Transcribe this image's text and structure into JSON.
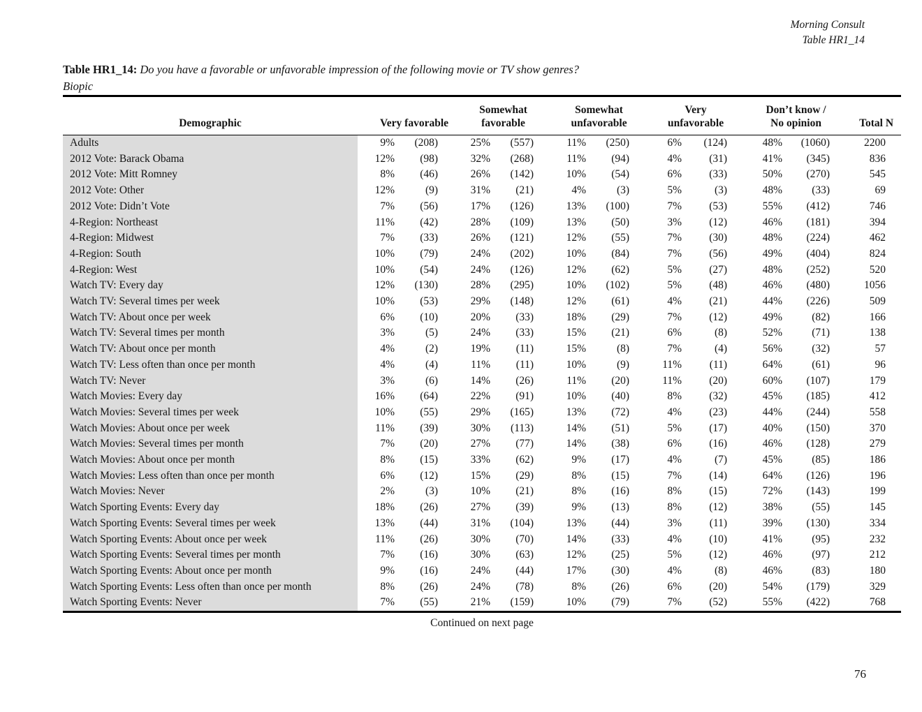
{
  "header": {
    "brand": "Morning Consult",
    "table_ref": "Table HR1_14"
  },
  "title": {
    "label": "Table HR1_14:",
    "question": "Do you have a favorable or unfavorable impression of the following movie or TV show genres?",
    "subtitle": "Biopic"
  },
  "table": {
    "col_demographic": "Demographic",
    "groups": [
      {
        "line1": "",
        "line2": "Very favorable"
      },
      {
        "line1": "Somewhat",
        "line2": "favorable"
      },
      {
        "line1": "Somewhat",
        "line2": "unfavorable"
      },
      {
        "line1": "Very",
        "line2": "unfavorable"
      },
      {
        "line1": "Don’t know /",
        "line2": "No opinion"
      }
    ],
    "col_total": "Total N",
    "rows": [
      [
        "Adults",
        "9%",
        "(208)",
        "25%",
        "(557)",
        "11%",
        "(250)",
        "6%",
        "(124)",
        "48%",
        "(1060)",
        "2200"
      ],
      [
        "2012 Vote: Barack Obama",
        "12%",
        "(98)",
        "32%",
        "(268)",
        "11%",
        "(94)",
        "4%",
        "(31)",
        "41%",
        "(345)",
        "836"
      ],
      [
        "2012 Vote: Mitt Romney",
        "8%",
        "(46)",
        "26%",
        "(142)",
        "10%",
        "(54)",
        "6%",
        "(33)",
        "50%",
        "(270)",
        "545"
      ],
      [
        "2012 Vote: Other",
        "12%",
        "(9)",
        "31%",
        "(21)",
        "4%",
        "(3)",
        "5%",
        "(3)",
        "48%",
        "(33)",
        "69"
      ],
      [
        "2012 Vote: Didn’t Vote",
        "7%",
        "(56)",
        "17%",
        "(126)",
        "13%",
        "(100)",
        "7%",
        "(53)",
        "55%",
        "(412)",
        "746"
      ],
      [
        "4-Region: Northeast",
        "11%",
        "(42)",
        "28%",
        "(109)",
        "13%",
        "(50)",
        "3%",
        "(12)",
        "46%",
        "(181)",
        "394"
      ],
      [
        "4-Region: Midwest",
        "7%",
        "(33)",
        "26%",
        "(121)",
        "12%",
        "(55)",
        "7%",
        "(30)",
        "48%",
        "(224)",
        "462"
      ],
      [
        "4-Region: South",
        "10%",
        "(79)",
        "24%",
        "(202)",
        "10%",
        "(84)",
        "7%",
        "(56)",
        "49%",
        "(404)",
        "824"
      ],
      [
        "4-Region: West",
        "10%",
        "(54)",
        "24%",
        "(126)",
        "12%",
        "(62)",
        "5%",
        "(27)",
        "48%",
        "(252)",
        "520"
      ],
      [
        "Watch TV: Every day",
        "12%",
        "(130)",
        "28%",
        "(295)",
        "10%",
        "(102)",
        "5%",
        "(48)",
        "46%",
        "(480)",
        "1056"
      ],
      [
        "Watch TV: Several times per week",
        "10%",
        "(53)",
        "29%",
        "(148)",
        "12%",
        "(61)",
        "4%",
        "(21)",
        "44%",
        "(226)",
        "509"
      ],
      [
        "Watch TV: About once per week",
        "6%",
        "(10)",
        "20%",
        "(33)",
        "18%",
        "(29)",
        "7%",
        "(12)",
        "49%",
        "(82)",
        "166"
      ],
      [
        "Watch TV: Several times per month",
        "3%",
        "(5)",
        "24%",
        "(33)",
        "15%",
        "(21)",
        "6%",
        "(8)",
        "52%",
        "(71)",
        "138"
      ],
      [
        "Watch TV: About once per month",
        "4%",
        "(2)",
        "19%",
        "(11)",
        "15%",
        "(8)",
        "7%",
        "(4)",
        "56%",
        "(32)",
        "57"
      ],
      [
        "Watch TV: Less often than once per month",
        "4%",
        "(4)",
        "11%",
        "(11)",
        "10%",
        "(9)",
        "11%",
        "(11)",
        "64%",
        "(61)",
        "96"
      ],
      [
        "Watch TV: Never",
        "3%",
        "(6)",
        "14%",
        "(26)",
        "11%",
        "(20)",
        "11%",
        "(20)",
        "60%",
        "(107)",
        "179"
      ],
      [
        "Watch Movies: Every day",
        "16%",
        "(64)",
        "22%",
        "(91)",
        "10%",
        "(40)",
        "8%",
        "(32)",
        "45%",
        "(185)",
        "412"
      ],
      [
        "Watch Movies: Several times per week",
        "10%",
        "(55)",
        "29%",
        "(165)",
        "13%",
        "(72)",
        "4%",
        "(23)",
        "44%",
        "(244)",
        "558"
      ],
      [
        "Watch Movies: About once per week",
        "11%",
        "(39)",
        "30%",
        "(113)",
        "14%",
        "(51)",
        "5%",
        "(17)",
        "40%",
        "(150)",
        "370"
      ],
      [
        "Watch Movies: Several times per month",
        "7%",
        "(20)",
        "27%",
        "(77)",
        "14%",
        "(38)",
        "6%",
        "(16)",
        "46%",
        "(128)",
        "279"
      ],
      [
        "Watch Movies: About once per month",
        "8%",
        "(15)",
        "33%",
        "(62)",
        "9%",
        "(17)",
        "4%",
        "(7)",
        "45%",
        "(85)",
        "186"
      ],
      [
        "Watch Movies: Less often than once per month",
        "6%",
        "(12)",
        "15%",
        "(29)",
        "8%",
        "(15)",
        "7%",
        "(14)",
        "64%",
        "(126)",
        "196"
      ],
      [
        "Watch Movies: Never",
        "2%",
        "(3)",
        "10%",
        "(21)",
        "8%",
        "(16)",
        "8%",
        "(15)",
        "72%",
        "(143)",
        "199"
      ],
      [
        "Watch Sporting Events: Every day",
        "18%",
        "(26)",
        "27%",
        "(39)",
        "9%",
        "(13)",
        "8%",
        "(12)",
        "38%",
        "(55)",
        "145"
      ],
      [
        "Watch Sporting Events: Several times per week",
        "13%",
        "(44)",
        "31%",
        "(104)",
        "13%",
        "(44)",
        "3%",
        "(11)",
        "39%",
        "(130)",
        "334"
      ],
      [
        "Watch Sporting Events: About once per week",
        "11%",
        "(26)",
        "30%",
        "(70)",
        "14%",
        "(33)",
        "4%",
        "(10)",
        "41%",
        "(95)",
        "232"
      ],
      [
        "Watch Sporting Events: Several times per month",
        "7%",
        "(16)",
        "30%",
        "(63)",
        "12%",
        "(25)",
        "5%",
        "(12)",
        "46%",
        "(97)",
        "212"
      ],
      [
        "Watch Sporting Events: About once per month",
        "9%",
        "(16)",
        "24%",
        "(44)",
        "17%",
        "(30)",
        "4%",
        "(8)",
        "46%",
        "(83)",
        "180"
      ],
      [
        "Watch Sporting Events: Less often than once per month",
        "8%",
        "(26)",
        "24%",
        "(78)",
        "8%",
        "(26)",
        "6%",
        "(20)",
        "54%",
        "(179)",
        "329"
      ],
      [
        "Watch Sporting Events: Never",
        "7%",
        "(55)",
        "21%",
        "(159)",
        "10%",
        "(79)",
        "7%",
        "(52)",
        "55%",
        "(422)",
        "768"
      ]
    ]
  },
  "footer": {
    "continued": "Continued on next page",
    "page_number": "76"
  }
}
